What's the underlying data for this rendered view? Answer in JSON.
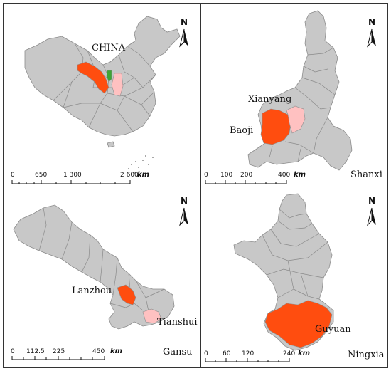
{
  "colors": {
    "base": "#c8c8c8",
    "border": "#8c8c8c",
    "primary": "#ff4d0f",
    "secondary": "#ffc1c1",
    "green": "#3fa535"
  },
  "panels": {
    "china": {
      "title": "CHINA",
      "scale": {
        "ticks": [
          "0",
          "650",
          "1 300",
          "2 600"
        ],
        "unit": "km"
      },
      "north": "N"
    },
    "shanxi": {
      "title": "Shanxi",
      "cities": [
        {
          "name": "Xianyang",
          "type": "secondary"
        },
        {
          "name": "Baoji",
          "type": "primary"
        }
      ],
      "scale": {
        "ticks": [
          "0",
          "100",
          "200",
          "400"
        ],
        "unit": "km"
      },
      "north": "N"
    },
    "gansu": {
      "title": "Gansu",
      "cities": [
        {
          "name": "Lanzhou",
          "type": "primary"
        },
        {
          "name": "Tianshui",
          "type": "secondary"
        }
      ],
      "scale": {
        "ticks": [
          "0",
          "112.5",
          "225",
          "450"
        ],
        "unit": "km"
      },
      "north": "N"
    },
    "ningxia": {
      "title": "Ningxia",
      "cities": [
        {
          "name": "Guyuan",
          "type": "primary"
        }
      ],
      "scale": {
        "ticks": [
          "0",
          "60",
          "120",
          "240"
        ],
        "unit": "km"
      },
      "north": "N"
    }
  }
}
